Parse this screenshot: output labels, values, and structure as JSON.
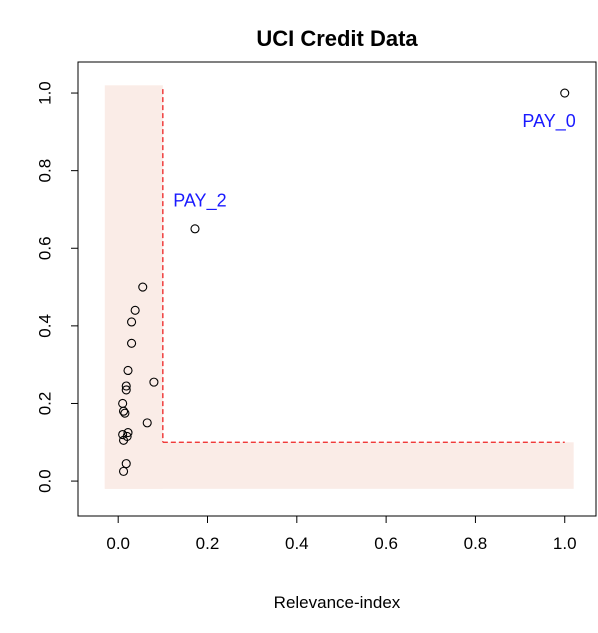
{
  "chart_data": {
    "type": "scatter",
    "title": "UCI Credit Data",
    "xlabel": "Relevance-index",
    "ylabel": "",
    "xlim": [
      -0.09,
      1.07
    ],
    "ylim": [
      -0.09,
      1.08
    ],
    "xticks": [
      0.0,
      0.2,
      0.4,
      0.6,
      0.8,
      1.0
    ],
    "xtick_labels": [
      "0.0",
      "0.2",
      "0.4",
      "0.6",
      "0.8",
      "1.0"
    ],
    "yticks": [
      0.0,
      0.2,
      0.4,
      0.6,
      0.8,
      1.0
    ],
    "ytick_labels": [
      "0.0",
      "0.2",
      "0.4",
      "0.6",
      "0.8",
      "1.0"
    ],
    "grid": false,
    "colors": {
      "points": "#000000",
      "annotations": "#1a1aff",
      "shading": "#faece7",
      "threshold_line": "#ee2222"
    },
    "points": [
      {
        "x": 1.0,
        "y": 1.0
      },
      {
        "x": 0.172,
        "y": 0.65
      },
      {
        "x": 0.055,
        "y": 0.5
      },
      {
        "x": 0.038,
        "y": 0.44
      },
      {
        "x": 0.03,
        "y": 0.41
      },
      {
        "x": 0.03,
        "y": 0.355
      },
      {
        "x": 0.022,
        "y": 0.285
      },
      {
        "x": 0.08,
        "y": 0.255
      },
      {
        "x": 0.018,
        "y": 0.245
      },
      {
        "x": 0.018,
        "y": 0.235
      },
      {
        "x": 0.01,
        "y": 0.2
      },
      {
        "x": 0.012,
        "y": 0.18
      },
      {
        "x": 0.015,
        "y": 0.175
      },
      {
        "x": 0.065,
        "y": 0.15
      },
      {
        "x": 0.022,
        "y": 0.125
      },
      {
        "x": 0.01,
        "y": 0.12
      },
      {
        "x": 0.012,
        "y": 0.105
      },
      {
        "x": 0.02,
        "y": 0.115
      },
      {
        "x": 0.018,
        "y": 0.045
      },
      {
        "x": 0.012,
        "y": 0.025
      }
    ],
    "annotations": [
      {
        "text": "PAY_0",
        "x": 0.965,
        "y": 0.925
      },
      {
        "text": "PAY_2",
        "x": 0.183,
        "y": 0.72
      }
    ],
    "shaded_regions": [
      {
        "x": [
          -0.03,
          0.1
        ],
        "y": [
          -0.02,
          1.02
        ]
      },
      {
        "x": [
          -0.03,
          1.02
        ],
        "y": [
          -0.02,
          0.1
        ]
      }
    ],
    "threshold_lines": [
      {
        "points": [
          [
            0.1,
            1.01
          ],
          [
            0.1,
            0.1
          ]
        ]
      },
      {
        "points": [
          [
            0.1,
            0.1
          ],
          [
            1.0,
            0.1
          ]
        ]
      }
    ]
  }
}
